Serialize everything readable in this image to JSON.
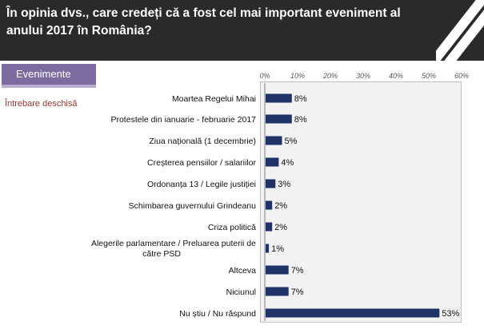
{
  "header": {
    "title": "În opinia dvs., care credeți că a fost cel mai important eveniment al anului 2017 în România?"
  },
  "tab": {
    "label": "Evenimente"
  },
  "note": "Întrebare deschisă",
  "colors": {
    "bar": "#1f3368",
    "header": "#2a2a2a",
    "tab": "#7c6b9e",
    "note": "#a0342e"
  },
  "chart_data": {
    "type": "bar",
    "orientation": "horizontal",
    "categories": [
      "Moartea Regelui Mihai",
      "Protestele din ianuarie - februarie 2017",
      "Ziua națională (1 decembrie)",
      "Creșterea pensiilor / salariilor",
      "Ordonanța 13 / Legile justiției",
      "Schimbarea guvernului Grindeanu",
      "Criza politică",
      "Alegerile parlamentare / Preluarea puterii de către PSD",
      "Altceva",
      "Niciunul",
      "Nu știu / Nu răspund"
    ],
    "values": [
      8,
      8,
      5,
      4,
      3,
      2,
      2,
      1,
      7,
      7,
      53
    ],
    "value_labels": [
      "8%",
      "8%",
      "5%",
      "4%",
      "3%",
      "2%",
      "2%",
      "1%",
      "7%",
      "7%",
      "53%"
    ],
    "xlim": [
      0,
      60
    ],
    "ticks": [
      "0%",
      "10%",
      "20%",
      "30%",
      "40%",
      "50%",
      "60%"
    ],
    "grid": false,
    "legend": "none"
  }
}
